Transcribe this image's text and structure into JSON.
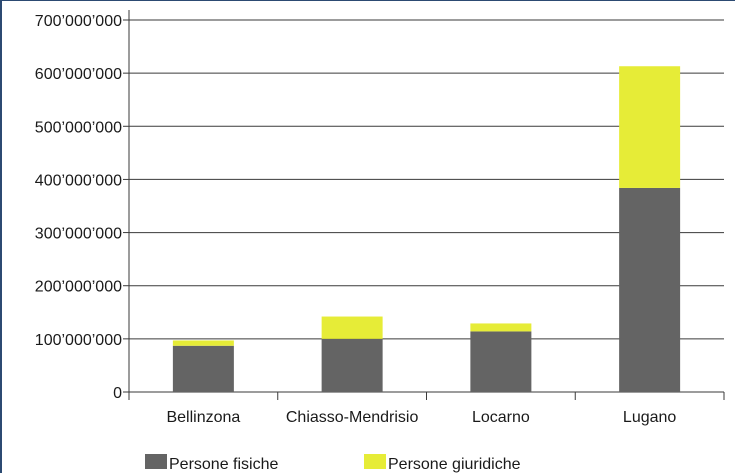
{
  "chart_data": {
    "type": "bar",
    "stacked": true,
    "categories": [
      "Bellinzona",
      "Chiasso-Mendrisio",
      "Locarno",
      "Lugano"
    ],
    "series": [
      {
        "name": "Persone fisiche",
        "color": "#646464",
        "values": [
          87000000,
          100000000,
          114000000,
          384000000
        ]
      },
      {
        "name": "Persone giuridiche",
        "color": "#e6ec37",
        "values": [
          10000000,
          42000000,
          15000000,
          229000000
        ]
      }
    ],
    "ylim": [
      0,
      700000000
    ],
    "yticks": [
      0,
      100000000,
      200000000,
      300000000,
      400000000,
      500000000,
      600000000,
      700000000
    ],
    "ytick_labels": [
      "0",
      "100’000’000",
      "200’000’000",
      "300’000’000",
      "400’000’000",
      "500’000’000",
      "600’000’000",
      "700’000’000"
    ],
    "grid": true,
    "legend": "bottom",
    "title": "",
    "xlabel": "",
    "ylabel": ""
  }
}
